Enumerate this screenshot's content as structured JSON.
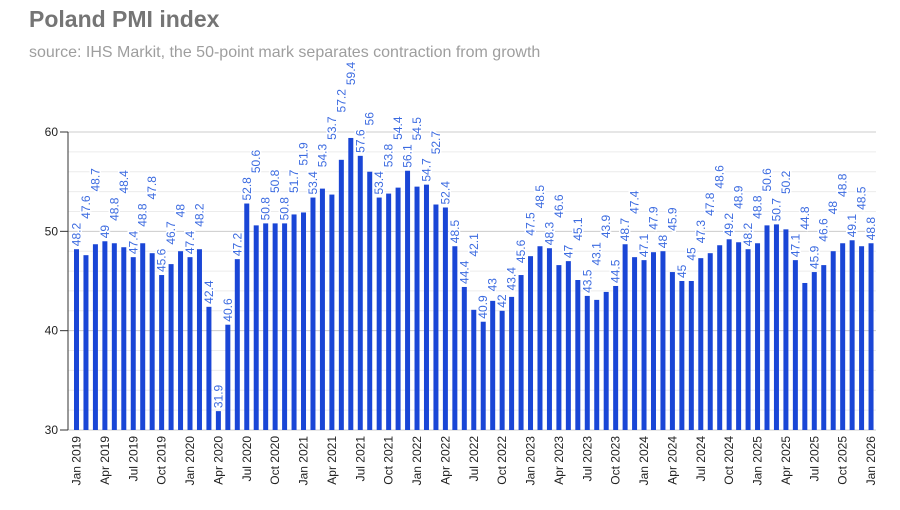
{
  "chart_data": {
    "type": "bar",
    "title": "Poland PMI index",
    "subtitle": "source: IHS Markit, the 50-point mark separates contraction from growth",
    "xlabel": "",
    "ylabel": "",
    "ylim": [
      30,
      60
    ],
    "yticks": [
      30,
      40,
      50,
      60
    ],
    "grid": true,
    "bar_color": "#1a46d6",
    "label_color": "#3c6be0",
    "start": {
      "year": 2019,
      "month": 1
    },
    "values": [
      48.2,
      47.6,
      48.7,
      49.0,
      48.8,
      48.4,
      47.4,
      48.8,
      47.8,
      45.6,
      46.7,
      48.0,
      47.4,
      48.2,
      42.4,
      31.9,
      40.6,
      47.2,
      52.8,
      50.6,
      50.8,
      50.8,
      50.8,
      51.7,
      51.9,
      53.4,
      54.3,
      53.7,
      57.2,
      59.4,
      57.6,
      56.0,
      53.4,
      53.8,
      54.4,
      56.1,
      54.5,
      54.7,
      52.7,
      52.4,
      48.5,
      44.4,
      42.1,
      40.9,
      43.0,
      42.0,
      43.4,
      45.6,
      47.5,
      48.5,
      48.3,
      46.6,
      47.0,
      45.1,
      43.5,
      43.1,
      43.9,
      44.5,
      48.7,
      47.4,
      47.1,
      47.9,
      48.0,
      45.9,
      45.0,
      45.0,
      47.3,
      47.8,
      48.6,
      49.2,
      48.9,
      48.2,
      48.8,
      50.6,
      50.7,
      50.2,
      47.1,
      44.8,
      45.9,
      46.6,
      48.0,
      48.8,
      49.1,
      48.5,
      48.8
    ],
    "xtick_labels": [
      "Jan 2019",
      "Apr 2019",
      "Jul 2019",
      "Oct 2019",
      "Jan 2020",
      "Apr 2020",
      "Jul 2020",
      "Oct 2020",
      "Jan 2021",
      "Apr 2021",
      "Jul 2021",
      "Oct 2021",
      "Jan 2022",
      "Apr 2022",
      "Jul 2022",
      "Oct 2022",
      "Jan 2023",
      "Apr 2023",
      "Jul 2023",
      "Oct 2023",
      "Jan 2024",
      "Apr 2024",
      "Jul 2024",
      "Oct 2024",
      "Jan 2025",
      "Apr 2025",
      "Jul 2025",
      "Oct 2025",
      "Jan 2026"
    ]
  }
}
